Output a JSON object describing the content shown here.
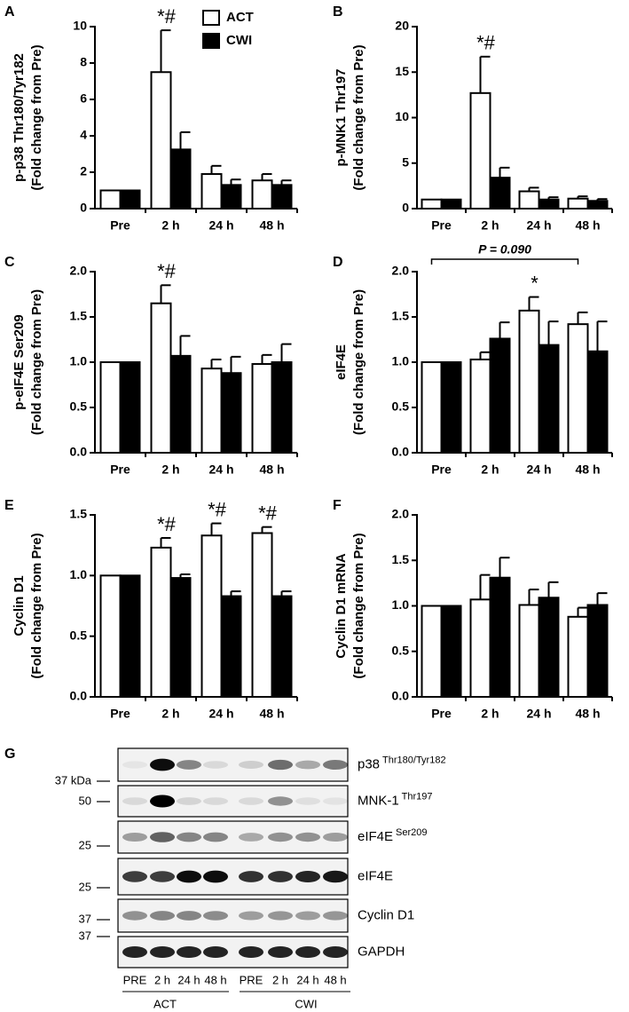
{
  "chart_data": [
    {
      "type": "bar",
      "label": "A",
      "ylabel": [
        "p-p38 Thr180/Tyr182",
        "(Fold change from Pre)"
      ],
      "categories": [
        "Pre",
        "2 h",
        "24 h",
        "48 h"
      ],
      "series": [
        {
          "name": "ACT",
          "color": "#ffffff",
          "values": [
            1,
            7.5,
            1.9,
            1.55
          ],
          "errors": [
            null,
            2.3,
            0.45,
            0.35
          ],
          "markers": [
            null,
            "*#",
            null,
            null
          ]
        },
        {
          "name": "CWI",
          "color": "#000000",
          "values": [
            1,
            3.25,
            1.3,
            1.3
          ],
          "errors": [
            null,
            0.95,
            0.3,
            0.25
          ]
        }
      ],
      "ylim": [
        0,
        10
      ],
      "yticks": [
        0,
        2,
        4,
        6,
        8,
        10
      ],
      "legend": "top-right"
    },
    {
      "type": "bar",
      "label": "B",
      "ylabel": [
        "p-MNK1 Thr197",
        "(Fold change from Pre)"
      ],
      "categories": [
        "Pre",
        "2 h",
        "24 h",
        "48 h"
      ],
      "series": [
        {
          "color": "#ffffff",
          "values": [
            1,
            12.7,
            1.9,
            1.1
          ],
          "errors": [
            null,
            4.0,
            0.4,
            0.25
          ],
          "markers": [
            null,
            "*#",
            null,
            null
          ]
        },
        {
          "color": "#000000",
          "values": [
            1,
            3.4,
            1.0,
            0.85
          ],
          "errors": [
            null,
            1.1,
            0.25,
            0.2
          ]
        }
      ],
      "ylim": [
        0,
        20
      ],
      "yticks": [
        0,
        5,
        10,
        15,
        20
      ]
    },
    {
      "type": "bar",
      "label": "C",
      "ylabel": [
        "p-eIF4E Ser209",
        "(Fold change from Pre)"
      ],
      "categories": [
        "Pre",
        "2 h",
        "24 h",
        "48 h"
      ],
      "series": [
        {
          "color": "#ffffff",
          "values": [
            1,
            1.65,
            0.93,
            0.98
          ],
          "errors": [
            null,
            0.2,
            0.1,
            0.1
          ],
          "markers": [
            null,
            "*#",
            null,
            null
          ]
        },
        {
          "color": "#000000",
          "values": [
            1,
            1.07,
            0.88,
            1.0
          ],
          "errors": [
            null,
            0.22,
            0.18,
            0.2
          ]
        }
      ],
      "ylim": [
        0,
        2
      ],
      "yticks": [
        {
          "value": 0,
          "label": "0.0"
        },
        0.5,
        {
          "value": 1,
          "label": "1.0"
        },
        1.5,
        {
          "value": 2,
          "label": "2.0"
        }
      ]
    },
    {
      "type": "bar",
      "label": "D",
      "ylabel": [
        "eIF4E",
        "(Fold change from Pre)"
      ],
      "categories": [
        "Pre",
        "2 h",
        "24 h",
        "48 h"
      ],
      "series": [
        {
          "color": "#ffffff",
          "values": [
            1,
            1.03,
            1.57,
            1.42
          ],
          "errors": [
            null,
            0.08,
            0.15,
            0.13
          ],
          "markers": [
            null,
            null,
            "*",
            null
          ]
        },
        {
          "color": "#000000",
          "values": [
            1,
            1.26,
            1.19,
            1.12
          ],
          "errors": [
            null,
            0.18,
            0.26,
            0.33
          ]
        }
      ],
      "ylim": [
        0,
        2
      ],
      "yticks": [
        {
          "value": 0,
          "label": "0.0"
        },
        0.5,
        {
          "value": 1,
          "label": "1.0"
        },
        1.5,
        {
          "value": 2,
          "label": "2.0"
        }
      ],
      "bracket": {
        "text": "P = 0.090",
        "from": "Pre",
        "to": "48 h"
      }
    },
    {
      "type": "bar",
      "label": "E",
      "ylabel": [
        "Cyclin D1",
        "(Fold change from Pre)"
      ],
      "categories": [
        "Pre",
        "2 h",
        "24 h",
        "48 h"
      ],
      "series": [
        {
          "color": "#ffffff",
          "values": [
            1,
            1.23,
            1.33,
            1.35
          ],
          "errors": [
            null,
            0.08,
            0.1,
            0.05
          ],
          "markers": [
            null,
            "*#",
            "*#",
            "*#"
          ]
        },
        {
          "color": "#000000",
          "values": [
            1,
            0.98,
            0.83,
            0.83
          ],
          "errors": [
            null,
            0.03,
            0.04,
            0.04
          ]
        }
      ],
      "ylim": [
        0,
        1.5
      ],
      "yticks": [
        {
          "value": 0,
          "label": "0.0"
        },
        0.5,
        {
          "value": 1,
          "label": "1.0"
        },
        1.5
      ]
    },
    {
      "type": "bar",
      "label": "F",
      "ylabel": [
        "Cyclin D1 mRNA",
        "(Fold change from Pre)"
      ],
      "categories": [
        "Pre",
        "2 h",
        "24 h",
        "48 h"
      ],
      "series": [
        {
          "color": "#ffffff",
          "values": [
            1,
            1.07,
            1.01,
            0.88
          ],
          "errors": [
            null,
            0.27,
            0.17,
            0.1
          ]
        },
        {
          "color": "#000000",
          "values": [
            1,
            1.31,
            1.09,
            1.01
          ],
          "errors": [
            null,
            0.22,
            0.17,
            0.13
          ]
        }
      ],
      "ylim": [
        0,
        2
      ],
      "yticks": [
        {
          "value": 0,
          "label": "0.0"
        },
        0.5,
        {
          "value": 1,
          "label": "1.0"
        },
        1.5,
        {
          "value": 2,
          "label": "2.0"
        }
      ]
    }
  ],
  "blot": {
    "label": "G",
    "rows": [
      {
        "name": "p38",
        "superscript": "Thr180/Tyr182",
        "marker": "37 kDa"
      },
      {
        "name": "MNK-1",
        "superscript": "Thr197",
        "marker": "50"
      },
      {
        "name": "eIF4E",
        "superscript": "Ser209",
        "marker": "25"
      },
      {
        "name": "eIF4E",
        "marker": "25"
      },
      {
        "name": "Cyclin D1",
        "marker": "37"
      },
      {
        "name": "GAPDH",
        "marker": "37"
      }
    ],
    "lanes": [
      "PRE",
      "2 h",
      "24 h",
      "48 h",
      "PRE",
      "2 h",
      "24 h",
      "48 h"
    ],
    "groups": [
      "ACT",
      "CWI"
    ]
  }
}
